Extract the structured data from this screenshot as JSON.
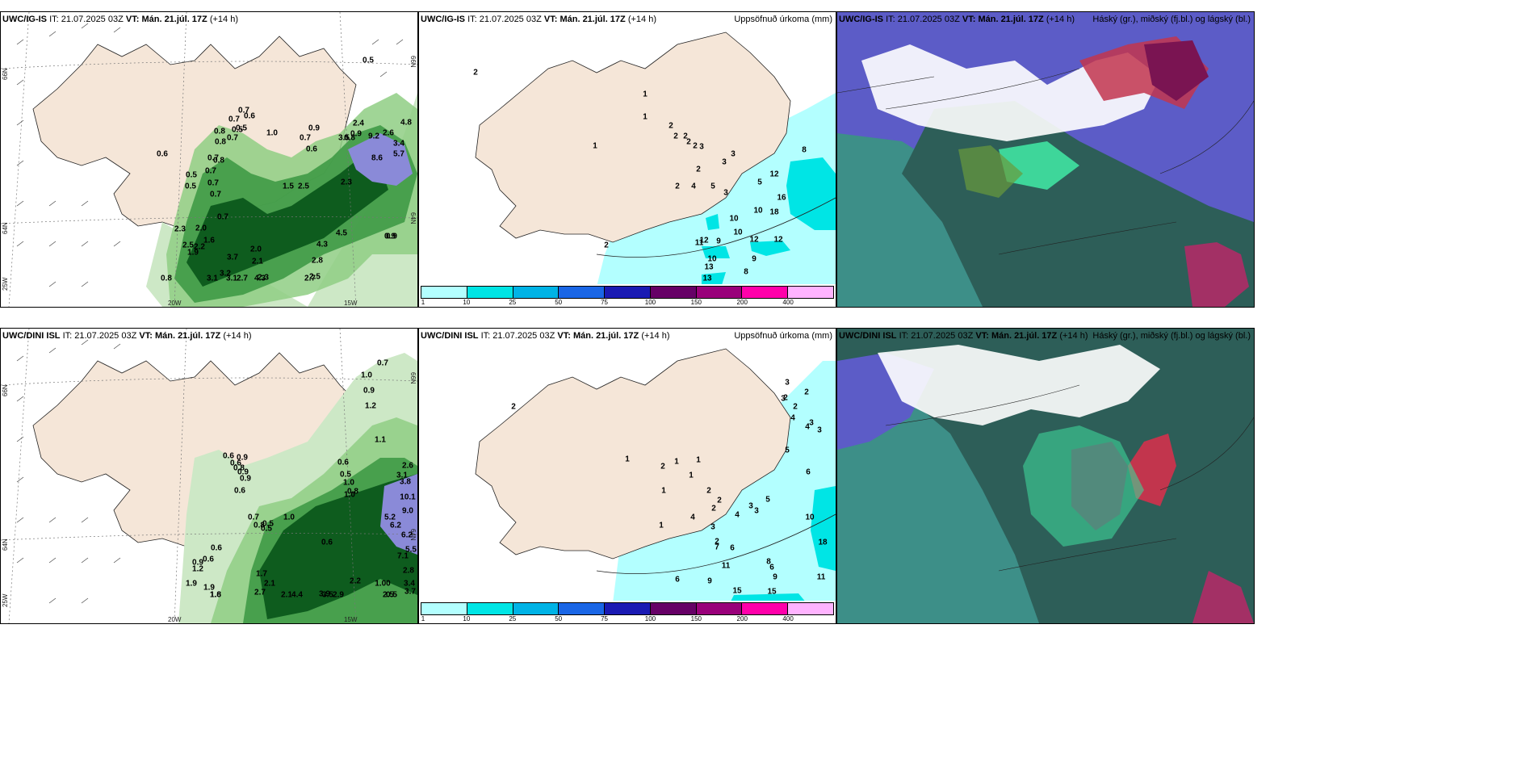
{
  "rows": [
    {
      "model": "UWC/IG-IS",
      "it_label": "IT:",
      "it_value": "21.07.2025 03Z",
      "vt_label": "VT:",
      "vt_value": "Mán. 21.júl. 17Z",
      "lead": "(+14 h)",
      "wind_values": [
        "0.5",
        "0.7",
        "0.6",
        "0.7",
        "0.8",
        "0.5",
        "0.7",
        "0.9",
        "0.8",
        "1.0",
        "0.7",
        "0.6",
        "0.5",
        "0.7",
        "0.8",
        "0.6",
        "0.7",
        "0.5",
        "0.7",
        "0.7",
        "0.9",
        "0.8",
        "2.4",
        "2.6",
        "3.4",
        "4.8",
        "5.7",
        "9.2",
        "8.6",
        "3.5",
        "2.3",
        "1.5",
        "2.5",
        "0.5",
        "0.9",
        "0.7",
        "2.3",
        "2.5",
        "1.9",
        "2.2",
        "2.0",
        "1.6",
        "3.7",
        "2.0",
        "2.1",
        "3.2",
        "3.1",
        "2.7",
        "4.3",
        "2.3",
        "2.8",
        "2.5",
        "2.7",
        "4.3",
        "4.5",
        "0.9",
        "0.8",
        "3.1"
      ],
      "precip_values": [
        "1",
        "1",
        "2",
        "2",
        "2",
        "2",
        "2",
        "1",
        "3",
        "3",
        "3",
        "2",
        "2",
        "4",
        "5",
        "3",
        "8",
        "5",
        "10",
        "12",
        "16",
        "18",
        "12",
        "9",
        "10",
        "10",
        "11",
        "13",
        "12",
        "12",
        "9",
        "8",
        "10",
        "13",
        "2",
        "2"
      ],
      "precip_title": "Uppsöfnuð úrkoma (mm)",
      "cloud_title": "Háský (gr.), miðský (fj.bl.) og lágský (bl.)"
    },
    {
      "model": "UWC/DINI ISL",
      "it_label": "IT:",
      "it_value": "21.07.2025 03Z",
      "vt_label": "VT:",
      "vt_value": "Mán. 21.júl. 17Z",
      "lead": "(+14 h)",
      "wind_values": [
        "0.7",
        "1.0",
        "0.9",
        "1.2",
        "0.6",
        "0.9",
        "1.1",
        "0.6",
        "0.5",
        "0.7",
        "0.8",
        "1.0",
        "0.6",
        "0.8",
        "0.9",
        "0.9",
        "2.6",
        "3.1",
        "3.8",
        "10.1",
        "9.0",
        "5.2",
        "6.2",
        "6.2",
        "5.5",
        "7.1",
        "0.6",
        "0.5",
        "1.0",
        "0.8",
        "1.0",
        "0.6",
        "0.6",
        "0.6",
        "0.9",
        "1.2",
        "1.9",
        "2.1",
        "2.7",
        "2.1",
        "4.4",
        "3.9",
        "3.5",
        "2.9",
        "2.2",
        "1.6",
        "1.9",
        "1.7",
        "0.5",
        "2.8",
        "3.4",
        "3.7",
        "1.00",
        "2.5",
        "0.5",
        "1.8"
      ],
      "precip_values": [
        "3",
        "2",
        "2",
        "2",
        "3",
        "4",
        "3",
        "3",
        "4",
        "2",
        "6",
        "5",
        "1",
        "1",
        "1",
        "2",
        "1",
        "1",
        "2",
        "2",
        "2",
        "3",
        "4",
        "3",
        "5",
        "1",
        "4",
        "3",
        "2",
        "7",
        "6",
        "8",
        "6",
        "9",
        "10",
        "18",
        "11",
        "11",
        "15",
        "15",
        "6",
        "9"
      ],
      "precip_title": "Uppsöfnuð úrkoma (mm)",
      "cloud_title": "Háský (gr.), miðský (fj.bl.) og lágský (bl.)"
    }
  ],
  "axis": {
    "lat_66": "66N",
    "lat_64": "64N",
    "lon_25": "25W",
    "lon_20": "20W",
    "lon_15": "15W"
  },
  "colorbar": {
    "ticks": [
      "1",
      "10",
      "25",
      "50",
      "75",
      "100",
      "150",
      "200",
      "400"
    ],
    "colors": [
      "#b3ffff",
      "#00e5e5",
      "#00b3e6",
      "#1a66e6",
      "#1a1ab3",
      "#660066",
      "#99007a",
      "#ff00aa",
      "#ffb3ff"
    ]
  }
}
